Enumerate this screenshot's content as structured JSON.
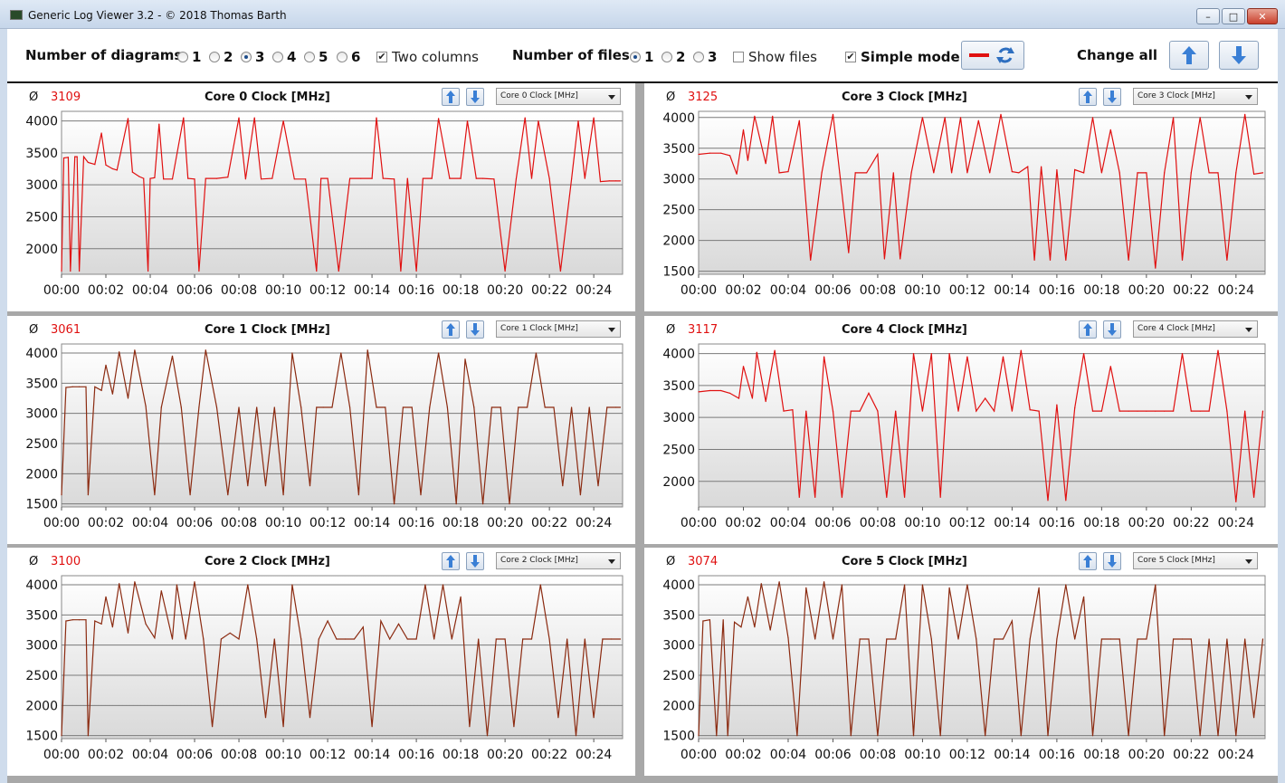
{
  "window": {
    "title": "Generic Log Viewer 3.2 - © 2018 Thomas Barth",
    "buttons": {
      "minimize": "–",
      "maximize": "□",
      "close": "✕"
    }
  },
  "toolbar": {
    "num_diagrams_label": "Number of diagrams",
    "diagram_options": [
      "1",
      "2",
      "3",
      "4",
      "5",
      "6"
    ],
    "diagram_selected": "3",
    "two_columns_label": "Two columns",
    "two_columns_checked": true,
    "num_files_label": "Number of files",
    "file_options": [
      "1",
      "2",
      "3"
    ],
    "file_selected": "1",
    "show_files_label": "Show files",
    "show_files_checked": false,
    "simple_mode_label": "Simple mode",
    "simple_mode_checked": true,
    "change_all_label": "Change all"
  },
  "panels": [
    {
      "avg_symbol": "Ø",
      "avg": "3109",
      "title": "Core 0 Clock [MHz]",
      "dropdown": "Core 0 Clock [MHz]"
    },
    {
      "avg_symbol": "Ø",
      "avg": "3125",
      "title": "Core 3 Clock [MHz]",
      "dropdown": "Core 3 Clock [MHz]"
    },
    {
      "avg_symbol": "Ø",
      "avg": "3061",
      "title": "Core 1 Clock [MHz]",
      "dropdown": "Core 1 Clock [MHz]"
    },
    {
      "avg_symbol": "Ø",
      "avg": "3117",
      "title": "Core 4 Clock [MHz]",
      "dropdown": "Core 4 Clock [MHz]"
    },
    {
      "avg_symbol": "Ø",
      "avg": "3100",
      "title": "Core 2 Clock [MHz]",
      "dropdown": "Core 2 Clock [MHz]"
    },
    {
      "avg_symbol": "Ø",
      "avg": "3074",
      "title": "Core 5 Clock [MHz]",
      "dropdown": "Core 5 Clock [MHz]"
    }
  ],
  "colors": {
    "line": "#e01010",
    "line_dark": "#8b2a10",
    "avg": "#e01010",
    "plot_bg_top": "#ffffff",
    "plot_bg_bottom": "#d9d9d9"
  },
  "chart_data": [
    {
      "type": "line",
      "title": "Core 0 Clock [MHz]",
      "xlabel": "",
      "ylabel": "",
      "x_ticks": [
        "00:00",
        "00:02",
        "00:04",
        "00:06",
        "00:08",
        "00:10",
        "00:12",
        "00:14",
        "00:16",
        "00:18",
        "00:20",
        "00:22",
        "00:24"
      ],
      "y_ticks": [
        2000,
        2500,
        3000,
        3500,
        4000
      ],
      "ylim": [
        1600,
        4150
      ],
      "xlim": [
        0,
        25.3
      ],
      "x": [
        0,
        0.1,
        0.3,
        0.4,
        0.6,
        0.7,
        0.8,
        1.0,
        1.2,
        1.3,
        1.5,
        1.8,
        2.0,
        2.3,
        2.5,
        3.0,
        3.2,
        3.5,
        3.7,
        3.9,
        4.0,
        4.2,
        4.4,
        4.6,
        5.0,
        5.5,
        5.7,
        6.0,
        6.2,
        6.5,
        7.0,
        7.5,
        8.0,
        8.3,
        8.7,
        9.0,
        9.5,
        10.0,
        10.5,
        11.0,
        11.5,
        11.7,
        12.0,
        12.5,
        13.0,
        13.5,
        14.0,
        14.2,
        14.5,
        15.0,
        15.3,
        15.6,
        16.0,
        16.3,
        16.7,
        17.0,
        17.5,
        18.0,
        18.3,
        18.7,
        19.0,
        19.5,
        20.0,
        20.5,
        20.9,
        21.2,
        21.5,
        22.0,
        22.5,
        23.0,
        23.3,
        23.6,
        24.0,
        24.3,
        24.7,
        25.0,
        25.2
      ],
      "y": [
        1650,
        3420,
        3430,
        1650,
        3440,
        3440,
        1650,
        3440,
        3350,
        3340,
        3320,
        3810,
        3310,
        3250,
        3230,
        4040,
        3200,
        3130,
        3100,
        1650,
        3100,
        3110,
        3950,
        3090,
        3090,
        4050,
        3100,
        3090,
        1650,
        3100,
        3100,
        3120,
        4050,
        3090,
        4050,
        3090,
        3100,
        4000,
        3090,
        3090,
        1650,
        3100,
        3100,
        1650,
        3100,
        3100,
        3100,
        4050,
        3100,
        3090,
        1650,
        3100,
        1650,
        3100,
        3100,
        4040,
        3100,
        3100,
        4000,
        3100,
        3100,
        3090,
        1650,
        3090,
        4050,
        3100,
        4000,
        3100,
        1650,
        3090,
        4000,
        3100,
        4050,
        3050,
        3060,
        3060,
        3060
      ]
    },
    {
      "type": "line",
      "title": "Core 3 Clock [MHz]",
      "xlabel": "",
      "ylabel": "",
      "x_ticks": [
        "00:00",
        "00:02",
        "00:04",
        "00:06",
        "00:08",
        "00:10",
        "00:12",
        "00:14",
        "00:16",
        "00:18",
        "00:20",
        "00:22",
        "00:24"
      ],
      "y_ticks": [
        1500,
        2000,
        2500,
        3000,
        3500,
        4000
      ],
      "ylim": [
        1450,
        4100
      ],
      "xlim": [
        0,
        25.3
      ],
      "x": [
        0,
        0.5,
        1.0,
        1.4,
        1.7,
        2.0,
        2.2,
        2.5,
        3.0,
        3.3,
        3.6,
        4.0,
        4.5,
        5.0,
        5.5,
        6.0,
        6.3,
        6.7,
        7.0,
        7.5,
        8.0,
        8.3,
        8.7,
        9.0,
        9.5,
        10.0,
        10.5,
        11.0,
        11.3,
        11.7,
        12.0,
        12.5,
        13.0,
        13.5,
        14.0,
        14.3,
        14.7,
        15.0,
        15.3,
        15.7,
        16.0,
        16.4,
        16.8,
        17.2,
        17.6,
        18.0,
        18.4,
        18.8,
        19.2,
        19.6,
        20.0,
        20.4,
        20.8,
        21.2,
        21.6,
        22.0,
        22.4,
        22.8,
        23.2,
        23.6,
        24.0,
        24.4,
        24.8,
        25.2
      ],
      "y": [
        3400,
        3420,
        3420,
        3380,
        3080,
        3800,
        3300,
        4020,
        3250,
        4020,
        3100,
        3120,
        3950,
        1680,
        3100,
        4050,
        3100,
        1800,
        3100,
        3100,
        3400,
        1700,
        3100,
        1700,
        3100,
        4000,
        3100,
        4000,
        3100,
        4000,
        3100,
        3950,
        3100,
        4050,
        3120,
        3100,
        3200,
        1680,
        3200,
        1680,
        3150,
        1680,
        3150,
        3100,
        4000,
        3100,
        3800,
        3100,
        1680,
        3100,
        3100,
        1550,
        3100,
        4000,
        1680,
        3100,
        4000,
        3100,
        3100,
        1680,
        3100,
        4050,
        3080,
        3100
      ]
    },
    {
      "type": "line",
      "title": "Core 1 Clock [MHz]",
      "xlabel": "",
      "ylabel": "",
      "x_ticks": [
        "00:00",
        "00:02",
        "00:04",
        "00:06",
        "00:08",
        "00:10",
        "00:12",
        "00:14",
        "00:16",
        "00:18",
        "00:20",
        "00:22",
        "00:24"
      ],
      "y_ticks": [
        1500,
        2000,
        2500,
        3000,
        3500,
        4000
      ],
      "ylim": [
        1450,
        4150
      ],
      "xlim": [
        0,
        25.3
      ],
      "x": [
        0,
        0.2,
        0.5,
        0.8,
        1.1,
        1.2,
        1.5,
        1.8,
        2.0,
        2.3,
        2.6,
        3.0,
        3.3,
        3.8,
        4.2,
        4.5,
        5.0,
        5.4,
        5.8,
        6.2,
        6.5,
        7.0,
        7.5,
        8.0,
        8.4,
        8.8,
        9.2,
        9.6,
        10.0,
        10.4,
        10.8,
        11.2,
        11.5,
        11.8,
        12.2,
        12.6,
        13.0,
        13.4,
        13.8,
        14.2,
        14.6,
        15.0,
        15.4,
        15.8,
        16.2,
        16.6,
        17.0,
        17.4,
        17.8,
        18.2,
        18.6,
        19.0,
        19.4,
        19.8,
        20.2,
        20.6,
        21.0,
        21.4,
        21.8,
        22.2,
        22.6,
        23.0,
        23.4,
        23.8,
        24.2,
        24.6,
        25.0,
        25.2
      ],
      "y": [
        1650,
        3430,
        3440,
        3440,
        3440,
        1650,
        3440,
        3380,
        3800,
        3320,
        4020,
        3250,
        4050,
        3120,
        1650,
        3100,
        3950,
        3100,
        1650,
        3100,
        4050,
        3100,
        1650,
        3100,
        1800,
        3100,
        1800,
        3100,
        1650,
        4000,
        3100,
        1800,
        3100,
        3100,
        3100,
        4000,
        3100,
        1650,
        4050,
        3100,
        3100,
        1500,
        3100,
        3100,
        1650,
        3100,
        4000,
        3100,
        1500,
        3900,
        3100,
        1500,
        3100,
        3100,
        1500,
        3100,
        3100,
        4000,
        3100,
        3100,
        1800,
        3100,
        1650,
        3100,
        1800,
        3100,
        3100,
        3100
      ]
    },
    {
      "type": "line",
      "title": "Core 4 Clock [MHz]",
      "xlabel": "",
      "ylabel": "",
      "x_ticks": [
        "00:00",
        "00:02",
        "00:04",
        "00:06",
        "00:08",
        "00:10",
        "00:12",
        "00:14",
        "00:16",
        "00:18",
        "00:20",
        "00:22",
        "00:24"
      ],
      "y_ticks": [
        2000,
        2500,
        3000,
        3500,
        4000
      ],
      "ylim": [
        1600,
        4150
      ],
      "xlim": [
        0,
        25.3
      ],
      "x": [
        0,
        0.5,
        1.0,
        1.4,
        1.8,
        2.0,
        2.4,
        2.6,
        3.0,
        3.4,
        3.8,
        4.2,
        4.5,
        4.8,
        5.2,
        5.6,
        6.0,
        6.4,
        6.8,
        7.2,
        7.6,
        8.0,
        8.4,
        8.8,
        9.2,
        9.6,
        10.0,
        10.4,
        10.8,
        11.2,
        11.6,
        12.0,
        12.4,
        12.8,
        13.2,
        13.6,
        14.0,
        14.4,
        14.8,
        15.2,
        15.6,
        16.0,
        16.4,
        16.8,
        17.2,
        17.6,
        18.0,
        18.4,
        18.8,
        19.2,
        19.6,
        20.0,
        20.4,
        20.8,
        21.2,
        21.6,
        22.0,
        22.4,
        22.8,
        23.2,
        23.6,
        24.0,
        24.4,
        24.8,
        25.2
      ],
      "y": [
        3400,
        3420,
        3420,
        3380,
        3300,
        3800,
        3300,
        4020,
        3250,
        4050,
        3100,
        3120,
        1750,
        3100,
        1750,
        3950,
        3100,
        1750,
        3100,
        3100,
        3380,
        3100,
        1750,
        3100,
        1750,
        4000,
        3100,
        4000,
        1750,
        4000,
        3100,
        3950,
        3100,
        3300,
        3100,
        3950,
        3100,
        4050,
        3120,
        3100,
        1700,
        3200,
        1700,
        3150,
        4000,
        3100,
        3100,
        3800,
        3100,
        3100,
        3100,
        3100,
        3100,
        3100,
        3100,
        4000,
        3100,
        3100,
        3100,
        4050,
        3100,
        1680,
        3100,
        1750,
        3100
      ]
    },
    {
      "type": "line",
      "title": "Core 2 Clock [MHz]",
      "xlabel": "",
      "ylabel": "",
      "x_ticks": [
        "00:00",
        "00:02",
        "00:04",
        "00:06",
        "00:08",
        "00:10",
        "00:12",
        "00:14",
        "00:16",
        "00:18",
        "00:20",
        "00:22",
        "00:24"
      ],
      "y_ticks": [
        1500,
        2000,
        2500,
        3000,
        3500,
        4000
      ],
      "ylim": [
        1450,
        4150
      ],
      "xlim": [
        0,
        25.3
      ],
      "x": [
        0,
        0.2,
        0.5,
        0.8,
        1.1,
        1.2,
        1.5,
        1.8,
        2.0,
        2.3,
        2.6,
        3.0,
        3.3,
        3.8,
        4.2,
        4.5,
        5.0,
        5.2,
        5.6,
        6.0,
        6.4,
        6.8,
        7.2,
        7.6,
        8.0,
        8.4,
        8.8,
        9.2,
        9.6,
        10.0,
        10.4,
        10.8,
        11.2,
        11.6,
        12.0,
        12.4,
        12.8,
        13.2,
        13.6,
        14.0,
        14.4,
        14.8,
        15.2,
        15.6,
        16.0,
        16.4,
        16.8,
        17.2,
        17.6,
        18.0,
        18.4,
        18.8,
        19.2,
        19.6,
        20.0,
        20.4,
        20.8,
        21.2,
        21.6,
        22.0,
        22.4,
        22.8,
        23.2,
        23.6,
        24.0,
        24.4,
        24.8,
        25.2
      ],
      "y": [
        1500,
        3400,
        3420,
        3420,
        3420,
        1500,
        3400,
        3350,
        3800,
        3300,
        4020,
        3200,
        4050,
        3350,
        3120,
        3900,
        3100,
        4000,
        3100,
        4050,
        3100,
        1650,
        3100,
        3200,
        3100,
        4000,
        3100,
        1800,
        3100,
        1650,
        4000,
        3100,
        1800,
        3100,
        3400,
        3100,
        3100,
        3100,
        3300,
        1650,
        3400,
        3100,
        3350,
        3100,
        3100,
        4000,
        3100,
        4000,
        3100,
        3800,
        1650,
        3100,
        1500,
        3100,
        3100,
        1650,
        3100,
        3100,
        4000,
        3100,
        1800,
        3100,
        1500,
        3100,
        1800,
        3100,
        3100,
        3100
      ]
    },
    {
      "type": "line",
      "title": "Core 5 Clock [MHz]",
      "xlabel": "",
      "ylabel": "",
      "x_ticks": [
        "00:00",
        "00:02",
        "00:04",
        "00:06",
        "00:08",
        "00:10",
        "00:12",
        "00:14",
        "00:16",
        "00:18",
        "00:20",
        "00:22",
        "00:24"
      ],
      "y_ticks": [
        1500,
        2000,
        2500,
        3000,
        3500,
        4000
      ],
      "ylim": [
        1450,
        4150
      ],
      "xlim": [
        0,
        25.3
      ],
      "x": [
        0,
        0.2,
        0.5,
        0.8,
        1.1,
        1.3,
        1.6,
        1.9,
        2.2,
        2.5,
        2.8,
        3.2,
        3.6,
        4.0,
        4.4,
        4.8,
        5.2,
        5.6,
        6.0,
        6.4,
        6.8,
        7.2,
        7.6,
        8.0,
        8.4,
        8.8,
        9.2,
        9.6,
        10.0,
        10.4,
        10.8,
        11.2,
        11.6,
        12.0,
        12.4,
        12.8,
        13.2,
        13.6,
        14.0,
        14.4,
        14.8,
        15.2,
        15.6,
        16.0,
        16.4,
        16.8,
        17.2,
        17.6,
        18.0,
        18.4,
        18.8,
        19.2,
        19.6,
        20.0,
        20.4,
        20.8,
        21.2,
        21.6,
        22.0,
        22.4,
        22.8,
        23.2,
        23.6,
        24.0,
        24.4,
        24.8,
        25.2
      ],
      "y": [
        1500,
        3400,
        3420,
        1500,
        3420,
        1500,
        3380,
        3300,
        3800,
        3300,
        4020,
        3250,
        4050,
        3120,
        1500,
        3950,
        3100,
        4050,
        3100,
        4000,
        1500,
        3100,
        3100,
        1500,
        3100,
        3100,
        4000,
        1500,
        4000,
        3100,
        1500,
        3950,
        3100,
        4000,
        3100,
        1500,
        3100,
        3100,
        3400,
        1500,
        3100,
        3950,
        1500,
        3100,
        4000,
        3100,
        3800,
        1500,
        3100,
        3100,
        3100,
        1500,
        3100,
        3100,
        4000,
        1500,
        3100,
        3100,
        3100,
        1500,
        3100,
        1500,
        3100,
        1500,
        3100,
        1800,
        3100
      ]
    }
  ]
}
